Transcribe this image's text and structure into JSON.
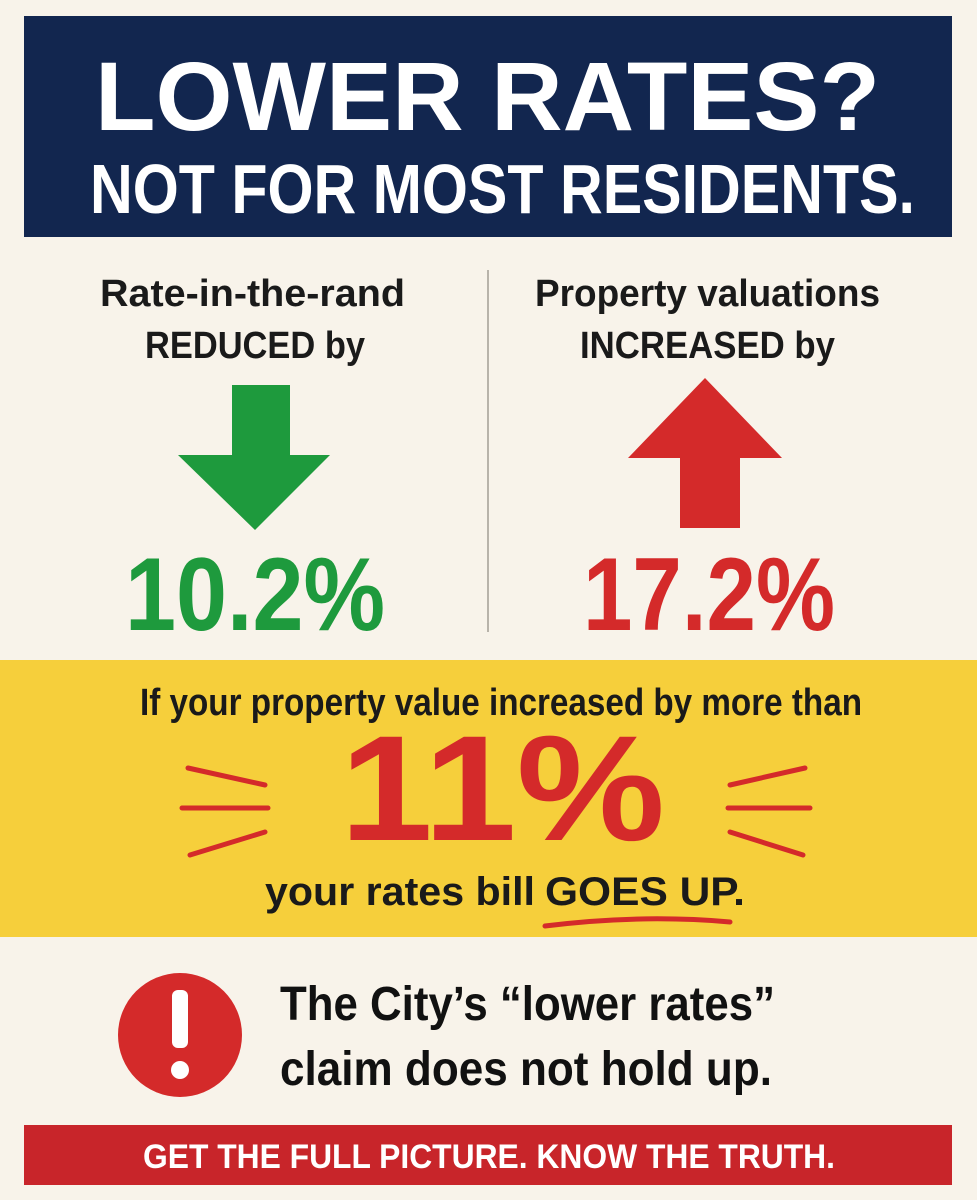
{
  "header": {
    "line1": "LOWER RATES?",
    "line2": "NOT FOR MOST RESIDENTS."
  },
  "left": {
    "label_line1": "Rate-in-the-rand",
    "label_line2": "REDUCED by",
    "value": "10.2%"
  },
  "right": {
    "label_line1": "Property valuations",
    "label_line2": "INCREASED by",
    "value": "17.2%"
  },
  "callout": {
    "intro": "If your property value increased by more than",
    "value": "11%",
    "outro": "your rates bill",
    "emphasis": "GOES UP."
  },
  "warning": {
    "line1": "The City’s “lower rates”",
    "line2": "claim does not hold up."
  },
  "footer": {
    "text": "GET THE FULL PICTURE. KNOW THE TRUTH."
  }
}
